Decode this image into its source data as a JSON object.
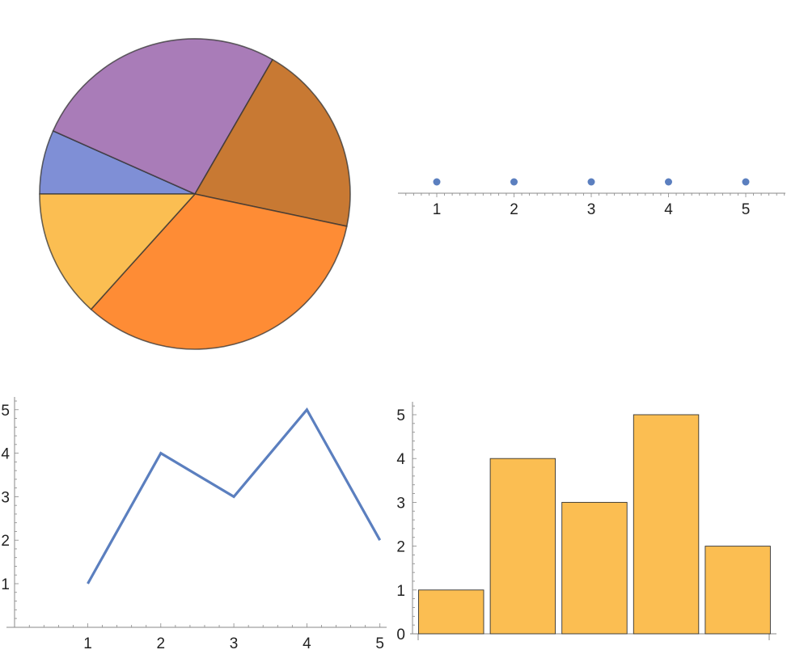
{
  "chart_data": [
    {
      "type": "pie",
      "slices": [
        {
          "value": 1,
          "color": "#7f8fd6"
        },
        {
          "value": 4,
          "color": "#a97cb8"
        },
        {
          "value": 3,
          "color": "#c87933"
        },
        {
          "value": 5,
          "color": "#fe8c35"
        },
        {
          "value": 2,
          "color": "#fbbe52"
        }
      ],
      "legend": "none"
    },
    {
      "type": "scatter",
      "x": [
        1,
        2,
        3,
        4,
        5
      ],
      "y": [
        1,
        1,
        1,
        1,
        1
      ],
      "xticks": [
        "1",
        "2",
        "3",
        "4",
        "5"
      ],
      "color": "#5b7fbf",
      "grid": false
    },
    {
      "type": "line",
      "x": [
        1,
        2,
        3,
        4,
        5
      ],
      "y": [
        1,
        4,
        3,
        5,
        2
      ],
      "xticks": [
        "1",
        "2",
        "3",
        "4",
        "5"
      ],
      "yticks": [
        "1",
        "2",
        "3",
        "4",
        "5"
      ],
      "color": "#5b7fbf",
      "grid": false
    },
    {
      "type": "bar",
      "values": [
        1,
        4,
        3,
        5,
        2
      ],
      "yticks": [
        "0",
        "1",
        "2",
        "3",
        "4",
        "5"
      ],
      "ylim": [
        0,
        5
      ],
      "color": "#fbbe52",
      "grid": false
    }
  ]
}
